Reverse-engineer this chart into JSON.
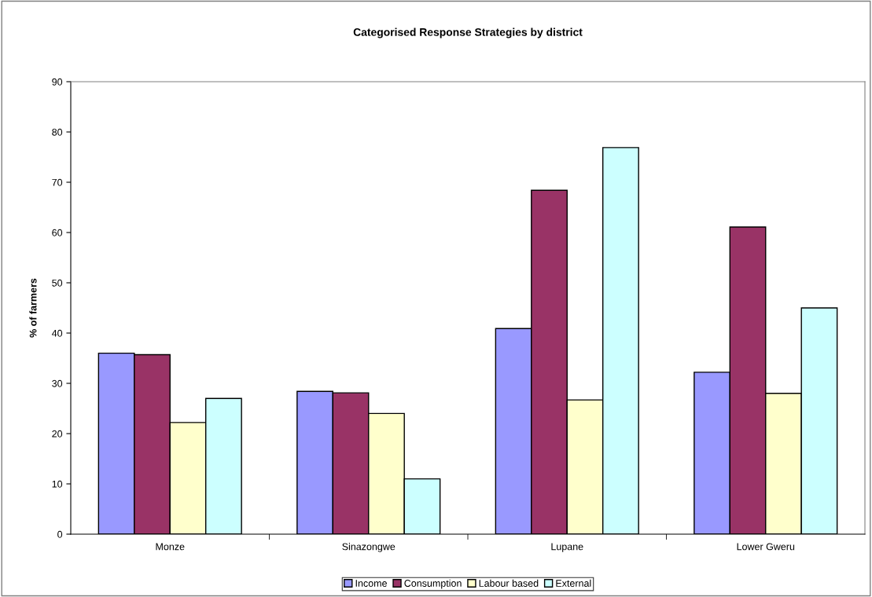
{
  "chart_data": {
    "type": "bar",
    "title": "Categorised Response Strategies by district",
    "ylabel": "% of farmers",
    "categories": [
      "Monze",
      "Sinazongwe",
      "Lupane",
      "Lower Gweru"
    ],
    "series": [
      {
        "name": "Income",
        "color": "#9999ff",
        "values": [
          36,
          28.4,
          40.9,
          32.2
        ]
      },
      {
        "name": "Consumption",
        "color": "#993366",
        "values": [
          35.7,
          28.1,
          68.4,
          61.1
        ]
      },
      {
        "name": "Labour based",
        "color": "#ffffcc",
        "values": [
          22.2,
          24.0,
          26.7,
          28.0
        ]
      },
      {
        "name": "External",
        "color": "#ccffff",
        "values": [
          27.0,
          11.0,
          76.9,
          45.0
        ]
      }
    ],
    "ylim": [
      0,
      90
    ],
    "yticks": [
      0,
      10,
      20,
      30,
      40,
      50,
      60,
      70,
      80,
      90
    ],
    "grid": false,
    "legend": "bottom"
  }
}
